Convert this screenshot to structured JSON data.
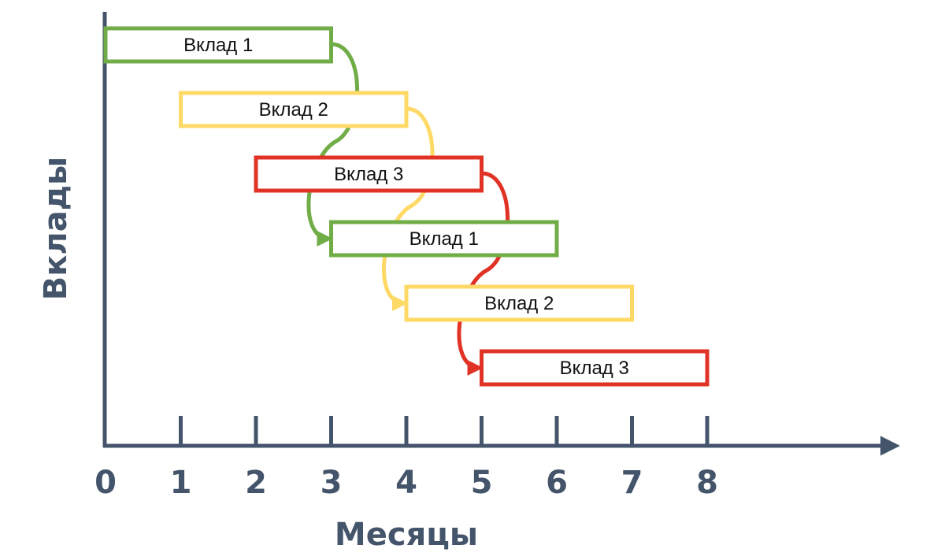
{
  "diagram": {
    "x_axis_title": "Месяцы",
    "y_axis_title": "Вклады",
    "x_ticks": [
      "0",
      "1",
      "2",
      "3",
      "4",
      "5",
      "6",
      "7",
      "8"
    ],
    "colors": {
      "axis": "#44546a",
      "green": "#70ad47",
      "yellow": "#ffd966",
      "red": "#e03326"
    },
    "deposits": [
      {
        "label": "Вклад 1",
        "start_month": 0,
        "end_month": 3,
        "row": 0,
        "color": "green"
      },
      {
        "label": "Вклад 2",
        "start_month": 1,
        "end_month": 4,
        "row": 1,
        "color": "yellow"
      },
      {
        "label": "Вклад 3",
        "start_month": 2,
        "end_month": 5,
        "row": 2,
        "color": "red"
      },
      {
        "label": "Вклад 1",
        "start_month": 3,
        "end_month": 6,
        "row": 3,
        "color": "green"
      },
      {
        "label": "Вклад 2",
        "start_month": 4,
        "end_month": 7,
        "row": 4,
        "color": "yellow"
      },
      {
        "label": "Вклад 3",
        "start_month": 5,
        "end_month": 8,
        "row": 5,
        "color": "red"
      }
    ],
    "arrows": [
      {
        "from": 0,
        "to": 3,
        "color": "green"
      },
      {
        "from": 1,
        "to": 4,
        "color": "yellow"
      },
      {
        "from": 2,
        "to": 5,
        "color": "red"
      }
    ]
  }
}
